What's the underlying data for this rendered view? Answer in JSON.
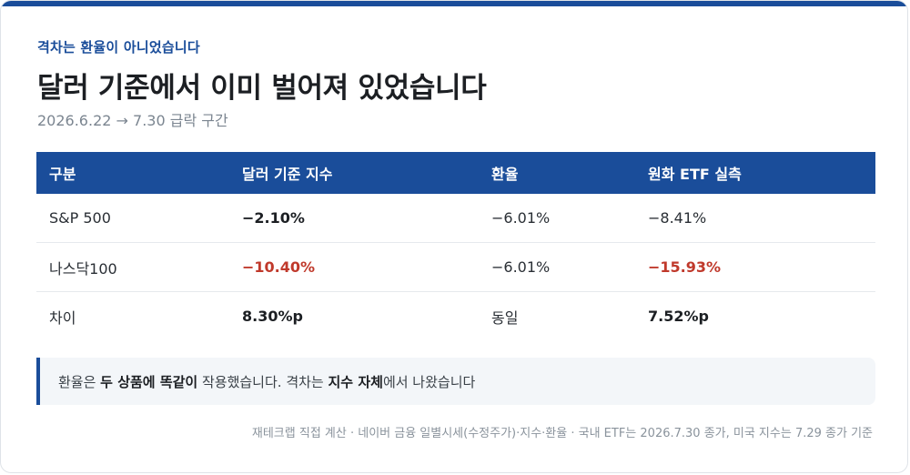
{
  "eyebrow": "격차는 환율이 아니었습니다",
  "title": "달러 기준에서 이미 벌어져 있었습니다",
  "subtitle": "2026.6.22 → 7.30 급락 구간",
  "table": {
    "headers": [
      "구분",
      "달러 기준 지수",
      "환율",
      "원화 ETF 실측"
    ],
    "rows": [
      [
        "S&P 500",
        "−2.10%",
        "−6.01%",
        "−8.41%"
      ],
      [
        "나스닥100",
        "−10.40%",
        "−6.01%",
        "−15.93%"
      ],
      [
        "차이",
        "8.30%p",
        "동일",
        "7.52%p"
      ]
    ]
  },
  "callout": {
    "p1": "환율은 ",
    "b1": "두 상품에 똑같이",
    "p2": " 작용했습니다. 격차는 ",
    "b2": "지수 자체",
    "p3": "에서 나왔습니다"
  },
  "footnote": "재테크랩 직접 계산 · 네이버 금융 일별시세(수정주가)·지수·환율 · 국내 ETF는 2026.7.30 종가, 미국 지수는 7.29 종가 기준",
  "colors": {
    "accent": "#1a4d9a",
    "negative": "#c0392b"
  }
}
